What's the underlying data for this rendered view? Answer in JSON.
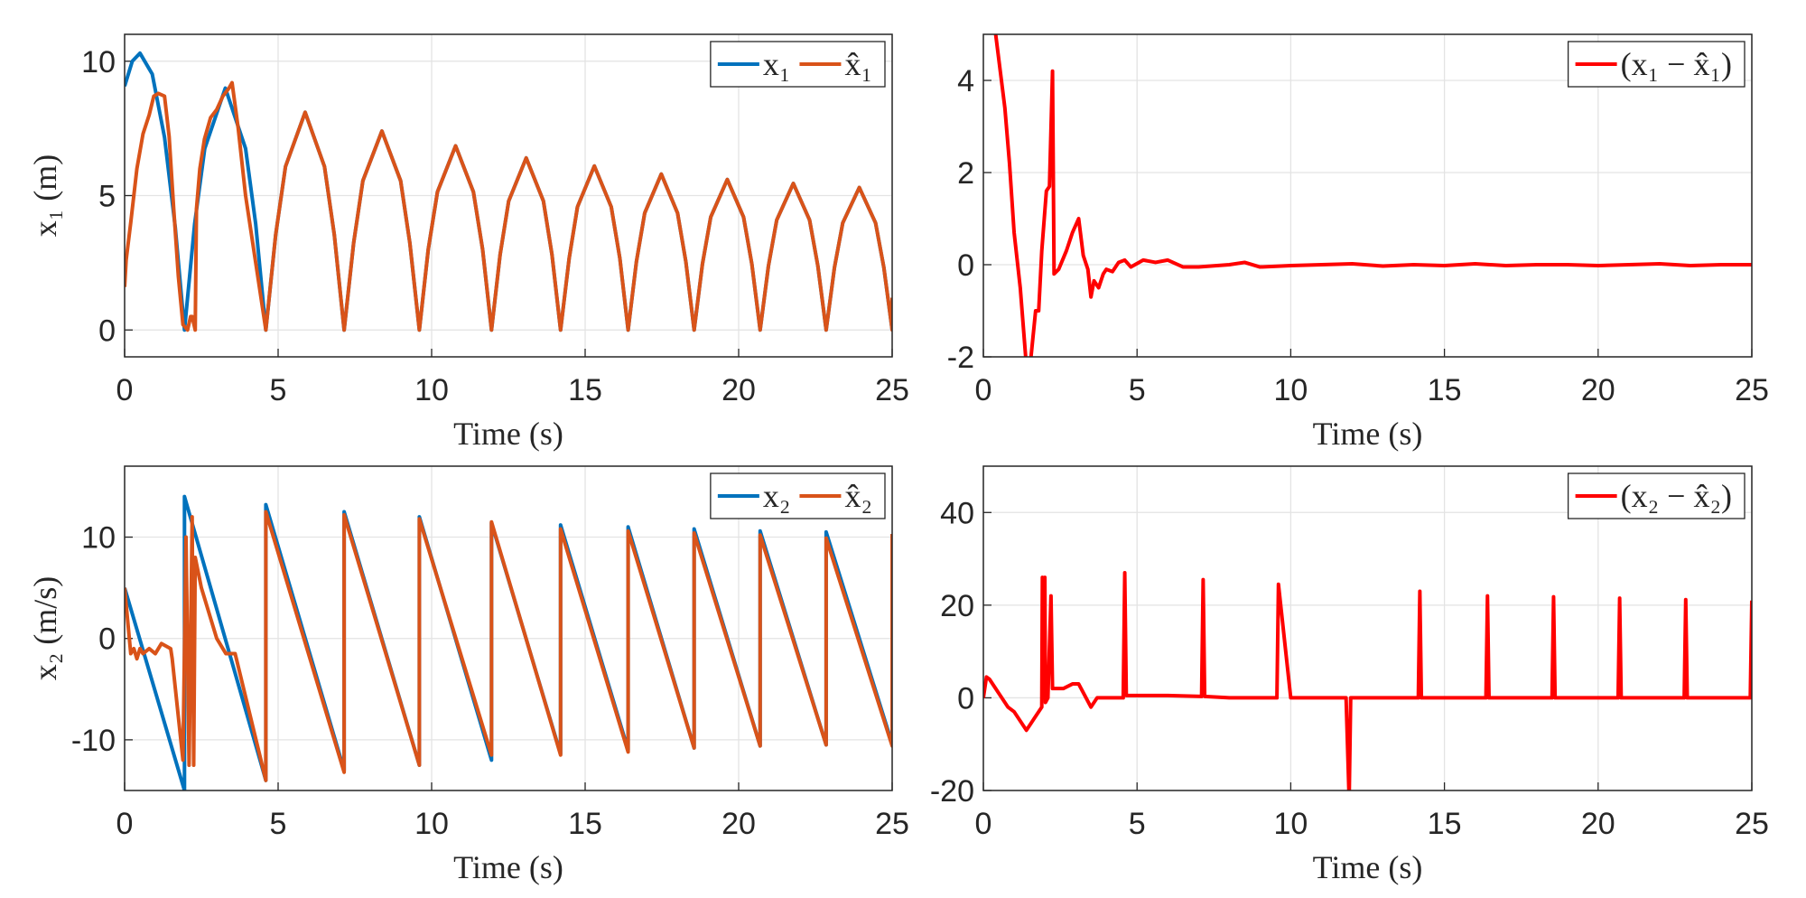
{
  "chart_data": [
    {
      "type": "line",
      "xlabel": "Time (s)",
      "ylabel": "x₁ (m)",
      "xlim": [
        0,
        25
      ],
      "ylim": [
        -1,
        11
      ],
      "xticks": [
        0,
        5,
        10,
        15,
        20,
        25
      ],
      "yticks": [
        0,
        5,
        10
      ],
      "grid": true,
      "legend": "northeast",
      "series": [
        {
          "name": "x₁",
          "color": "#0072BD",
          "x": [
            0,
            0.25,
            0.5,
            0.9,
            1.3,
            1.65,
            1.95,
            2.28,
            2.61,
            3.28,
            3.94,
            4.27,
            4.6,
            4.92,
            5.24,
            5.88,
            6.51,
            6.83,
            7.15,
            7.46,
            7.76,
            8.38,
            8.99,
            9.29,
            9.6,
            9.89,
            10.19,
            10.78,
            11.36,
            11.66,
            11.95,
            12.23,
            12.51,
            13.08,
            13.64,
            13.92,
            14.2,
            14.48,
            14.75,
            15.3,
            15.85,
            16.13,
            16.4,
            16.67,
            16.94,
            17.48,
            18.01,
            18.28,
            18.55,
            18.82,
            19.09,
            19.63,
            20.16,
            20.43,
            20.7,
            20.97,
            21.24,
            21.78,
            22.31,
            22.58,
            22.85,
            23.12,
            23.39,
            23.93,
            24.46,
            24.73,
            25
          ],
          "values": [
            9.07,
            10.0,
            10.3,
            9.52,
            7.17,
            3.82,
            0,
            3.94,
            6.75,
            9.0,
            6.75,
            3.94,
            0,
            3.54,
            6.08,
            8.1,
            6.08,
            3.54,
            0,
            3.24,
            5.55,
            7.4,
            5.55,
            3.24,
            0,
            3.0,
            5.14,
            6.85,
            5.14,
            3.0,
            0,
            2.8,
            4.8,
            6.4,
            4.8,
            2.8,
            0,
            2.67,
            4.58,
            6.1,
            4.58,
            2.67,
            0,
            2.54,
            4.35,
            5.8,
            4.35,
            2.54,
            0,
            2.45,
            4.2,
            5.6,
            4.2,
            2.45,
            0,
            2.38,
            4.09,
            5.45,
            4.09,
            2.38,
            0,
            2.32,
            3.98,
            5.3,
            3.98,
            2.32,
            0
          ]
        },
        {
          "name": "x̂₁",
          "color": "#D95319",
          "x": [
            0,
            0.05,
            0.2,
            0.4,
            0.6,
            0.8,
            0.95,
            1.1,
            1.3,
            1.45,
            1.6,
            1.75,
            1.9,
            2.05,
            2.15,
            2.2,
            2.3,
            2.34,
            2.45,
            2.6,
            2.8,
            3.0,
            3.2,
            3.4,
            3.5,
            3.7,
            3.94,
            4.27,
            4.6,
            4.92,
            5.24,
            5.88,
            6.51,
            6.83,
            7.15,
            7.46,
            7.76,
            8.38,
            8.99,
            9.29,
            9.6,
            9.89,
            10.19,
            10.78,
            11.36,
            11.66,
            11.95,
            12.23,
            12.51,
            13.08,
            13.64,
            13.92,
            14.2,
            14.48,
            14.75,
            15.3,
            15.85,
            16.13,
            16.4,
            16.67,
            16.94,
            17.48,
            18.01,
            18.28,
            18.55,
            18.82,
            19.09,
            19.63,
            20.16,
            20.43,
            20.7,
            20.97,
            21.24,
            21.78,
            22.31,
            22.58,
            22.85,
            23.12,
            23.39,
            23.93,
            24.46,
            24.73,
            25,
            25
          ],
          "values": [
            1.6,
            2.6,
            4.0,
            6.0,
            7.3,
            8.0,
            8.7,
            8.8,
            8.7,
            7.2,
            4.5,
            2.0,
            0.2,
            0,
            0.5,
            0.5,
            0,
            4.5,
            6.0,
            7.1,
            7.9,
            8.2,
            8.7,
            9.0,
            9.2,
            7.5,
            5.0,
            2.5,
            0,
            3.54,
            6.08,
            8.1,
            6.08,
            3.54,
            0,
            3.24,
            5.55,
            7.4,
            5.55,
            3.24,
            0,
            3.0,
            5.14,
            6.85,
            5.14,
            3.0,
            0,
            2.8,
            4.8,
            6.4,
            4.8,
            2.8,
            0,
            2.67,
            4.58,
            6.1,
            4.58,
            2.67,
            0,
            2.54,
            4.35,
            5.8,
            4.35,
            2.54,
            0,
            2.45,
            4.2,
            5.6,
            4.2,
            2.45,
            0,
            2.38,
            4.09,
            5.45,
            4.09,
            2.38,
            0,
            2.32,
            3.98,
            5.3,
            3.98,
            2.32,
            0,
            1.2
          ]
        }
      ]
    },
    {
      "type": "line",
      "xlabel": "Time (s)",
      "xlim": [
        0,
        25
      ],
      "ylim": [
        -2,
        5
      ],
      "xticks": [
        0,
        5,
        10,
        15,
        20,
        25
      ],
      "yticks": [
        -2,
        0,
        2,
        4
      ],
      "grid": true,
      "legend": "northeast",
      "series": [
        {
          "name": "(x₁ − x̂₁)",
          "color": "#FF0000",
          "x": [
            0.4,
            0.55,
            0.7,
            0.85,
            1.0,
            1.2,
            1.4,
            1.55,
            1.7,
            1.8,
            1.9,
            2.05,
            2.15,
            2.25,
            2.3,
            2.45,
            2.7,
            2.9,
            3.1,
            3.25,
            3.4,
            3.5,
            3.6,
            3.75,
            3.9,
            4.0,
            4.2,
            4.4,
            4.6,
            4.8,
            5.2,
            5.6,
            6.0,
            6.5,
            7,
            8,
            8.5,
            9,
            10,
            11,
            12,
            13,
            14,
            15,
            16,
            17,
            18,
            19,
            20,
            21,
            22,
            23,
            24,
            25
          ],
          "values": [
            5,
            4.2,
            3.4,
            2.2,
            0.7,
            -0.5,
            -2.2,
            -2.0,
            -1.0,
            -1.0,
            0.3,
            1.6,
            1.7,
            4.2,
            -0.2,
            -0.1,
            0.3,
            0.7,
            1.0,
            0.2,
            -0.1,
            -0.7,
            -0.35,
            -0.5,
            -0.2,
            -0.1,
            -0.15,
            0.05,
            0.1,
            -0.05,
            0.1,
            0.05,
            0.1,
            -0.05,
            -0.05,
            0.0,
            0.05,
            -0.05,
            -0.02,
            0.0,
            0.02,
            -0.03,
            0.0,
            -0.02,
            0.02,
            -0.02,
            0.0,
            0.0,
            -0.02,
            0.0,
            0.02,
            -0.02,
            0.0,
            0.0
          ]
        }
      ]
    },
    {
      "type": "line",
      "xlabel": "Time (s)",
      "ylabel": "x₂ (m/s)",
      "xlim": [
        0,
        25
      ],
      "ylim": [
        -15,
        17
      ],
      "xticks": [
        0,
        5,
        10,
        15,
        20,
        25
      ],
      "yticks": [
        -10,
        0,
        10
      ],
      "grid": true,
      "legend": "northeast",
      "series": [
        {
          "name": "x₂",
          "color": "#0072BD",
          "x": [
            0,
            1.95,
            1.95,
            4.6,
            4.6,
            7.15,
            7.15,
            9.6,
            9.6,
            11.95,
            11.95,
            14.2,
            14.2,
            16.4,
            16.4,
            18.55,
            18.55,
            20.7,
            20.7,
            22.85,
            22.85,
            25,
            25
          ],
          "values": [
            5,
            -15,
            14,
            -14,
            13.2,
            -13,
            12.5,
            -12.5,
            12,
            -12,
            11.4,
            -11.4,
            11.2,
            -11,
            11,
            -10.8,
            10.8,
            -10.6,
            10.6,
            -10.5,
            10.5,
            -10.4,
            10.3
          ]
        },
        {
          "name": "x̂₂",
          "color": "#D95319",
          "x": [
            0,
            0.2,
            0.3,
            0.4,
            0.5,
            0.6,
            0.8,
            1.0,
            1.2,
            1.5,
            1.55,
            1.9,
            2.0,
            2.1,
            2.2,
            2.25,
            2.3,
            2.5,
            2.8,
            3.0,
            3.3,
            3.6,
            4.6,
            4.6,
            7.15,
            7.15,
            9.6,
            9.6,
            11.95,
            11.95,
            14.2,
            14.2,
            16.4,
            16.4,
            18.55,
            18.55,
            20.7,
            20.7,
            22.85,
            22.85,
            25,
            25
          ],
          "values": [
            5,
            -1.5,
            -1,
            -2,
            -1,
            -1.5,
            -1,
            -1.5,
            -0.5,
            -1,
            -2,
            -12,
            10,
            -12.5,
            12,
            -12.5,
            8,
            5,
            2,
            0,
            -1.5,
            -1.5,
            -14,
            12.5,
            -13.2,
            12.2,
            -12.5,
            11.8,
            -11.5,
            11.5,
            -11.5,
            10.8,
            -11.2,
            10.6,
            -10.8,
            10.4,
            -10.6,
            10.2,
            -10.5,
            9.9,
            -10.6,
            10.3
          ]
        }
      ]
    },
    {
      "type": "line",
      "xlabel": "Time (s)",
      "xlim": [
        0,
        25
      ],
      "ylim": [
        -20,
        50
      ],
      "xticks": [
        0,
        5,
        10,
        15,
        20,
        25
      ],
      "yticks": [
        -20,
        0,
        20,
        40
      ],
      "grid": true,
      "legend": "northeast",
      "series": [
        {
          "name": "(x₂ − x̂₂)",
          "color": "#FF0000",
          "x": [
            0,
            0.1,
            0.2,
            0.5,
            0.8,
            1.0,
            1.3,
            1.4,
            1.6,
            1.8,
            1.9,
            1.92,
            1.95,
            2.0,
            2.02,
            2.1,
            2.2,
            2.25,
            2.3,
            2.6,
            2.9,
            3.1,
            3.5,
            3.7,
            4.0,
            4.55,
            4.6,
            4.65,
            5,
            6,
            7.1,
            7.15,
            7.2,
            8,
            9.5,
            9.55,
            9.6,
            10,
            11.8,
            11.9,
            11.95,
            12.0,
            13,
            14.15,
            14.2,
            14.25,
            16.35,
            16.4,
            16.45,
            18.5,
            18.55,
            18.6,
            20.65,
            20.7,
            20.75,
            22.8,
            22.85,
            22.9,
            24.95,
            25
          ],
          "values": [
            0,
            4.5,
            4,
            1,
            -2,
            -3,
            -6,
            -7,
            -5,
            -3,
            -2,
            26,
            0,
            26,
            -1,
            0,
            22,
            2,
            2,
            2,
            3,
            3,
            -2,
            0,
            0,
            0,
            27,
            0.5,
            0.5,
            0.5,
            0.3,
            25.5,
            0.3,
            0,
            0,
            0,
            24.5,
            0,
            0,
            -22,
            0,
            0,
            0,
            0,
            23,
            0,
            0,
            22,
            0,
            0,
            21.8,
            0,
            0,
            21.5,
            0,
            0,
            21.2,
            0,
            0,
            21
          ]
        }
      ]
    }
  ]
}
